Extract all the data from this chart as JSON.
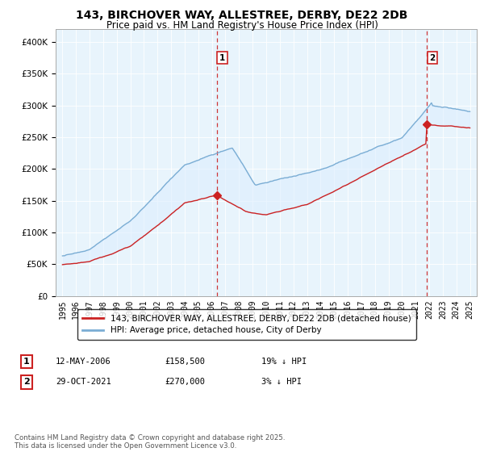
{
  "title": "143, BIRCHOVER WAY, ALLESTREE, DERBY, DE22 2DB",
  "subtitle": "Price paid vs. HM Land Registry's House Price Index (HPI)",
  "legend_line1": "143, BIRCHOVER WAY, ALLESTREE, DERBY, DE22 2DB (detached house)",
  "legend_line2": "HPI: Average price, detached house, City of Derby",
  "annotation1_label": "1",
  "annotation1_date": "12-MAY-2006",
  "annotation1_price": "£158,500",
  "annotation1_hpi": "19% ↓ HPI",
  "annotation1_year": 2006.36,
  "annotation1_value": 158500,
  "annotation2_label": "2",
  "annotation2_date": "29-OCT-2021",
  "annotation2_price": "£270,000",
  "annotation2_hpi": "3% ↓ HPI",
  "annotation2_year": 2021.83,
  "annotation2_value": 270000,
  "footnote": "Contains HM Land Registry data © Crown copyright and database right 2025.\nThis data is licensed under the Open Government Licence v3.0.",
  "red_color": "#cc2222",
  "blue_color": "#7aadd4",
  "fill_color": "#ddeeff",
  "ylim_min": 0,
  "ylim_max": 420000,
  "xlim_min": 1994.5,
  "xlim_max": 2025.5,
  "title_fontsize": 10,
  "subtitle_fontsize": 8.5,
  "tick_fontsize": 7,
  "legend_fontsize": 7.5,
  "annot_fontsize": 7.5
}
